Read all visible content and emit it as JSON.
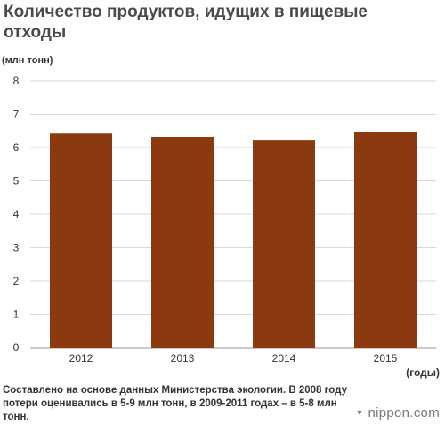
{
  "header": {
    "title": "Количество продуктов, идущих в пищевые отходы"
  },
  "chart_data": {
    "type": "bar",
    "title": "Количество продуктов, идущих в пищевые отходы",
    "ylabel": "(млн тонн)",
    "xlabel": "(годы)",
    "categories": [
      "2012",
      "2013",
      "2014",
      "2015"
    ],
    "values": [
      6.42,
      6.32,
      6.21,
      6.46
    ],
    "ylim": [
      0,
      8
    ],
    "yticks": [
      0,
      1,
      2,
      3,
      4,
      5,
      6,
      7,
      8
    ],
    "grid": true,
    "bar_color": "#8b3a0f",
    "grid_color": "#d9d9d9"
  },
  "footer": {
    "source": "Составлено на основе данных Министерства экологии. В 2008 году потери оценивались в 5-9 млн тонн, в 2009-2011 годах – в 5-8 млн тонн.",
    "brand": "nippon.com",
    "brand_icon": "nippon-logo-icon"
  }
}
